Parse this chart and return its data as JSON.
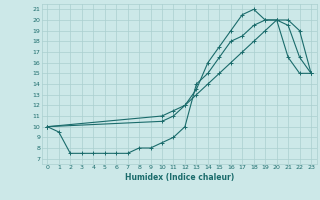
{
  "xlabel": "Humidex (Indice chaleur)",
  "bg_color": "#cce8e8",
  "grid_color": "#aacfcf",
  "line_color": "#1a6b6b",
  "xlim": [
    -0.5,
    23.5
  ],
  "ylim": [
    6.5,
    21.5
  ],
  "xticks": [
    0,
    1,
    2,
    3,
    4,
    5,
    6,
    7,
    8,
    9,
    10,
    11,
    12,
    13,
    14,
    15,
    16,
    17,
    18,
    19,
    20,
    21,
    22,
    23
  ],
  "yticks": [
    7,
    8,
    9,
    10,
    11,
    12,
    13,
    14,
    15,
    16,
    17,
    18,
    19,
    20,
    21
  ],
  "line1_x": [
    0,
    1,
    2,
    3,
    4,
    5,
    6,
    7,
    8,
    9,
    10,
    11,
    12,
    13,
    14,
    15,
    16,
    17,
    18,
    19,
    20,
    21,
    22,
    23
  ],
  "line1_y": [
    10,
    9.5,
    7.5,
    7.5,
    7.5,
    7.5,
    7.5,
    7.5,
    8.0,
    8.0,
    8.5,
    9.0,
    10.0,
    14.0,
    15.0,
    16.5,
    18.0,
    18.5,
    19.5,
    20.0,
    20.0,
    19.5,
    16.5,
    15.0
  ],
  "line2_x": [
    0,
    10,
    11,
    12,
    13,
    14,
    15,
    16,
    17,
    18,
    19,
    20,
    21,
    22,
    23
  ],
  "line2_y": [
    10,
    11.0,
    11.5,
    12.0,
    13.5,
    16.0,
    17.5,
    19.0,
    20.5,
    21.0,
    20.0,
    20.0,
    16.5,
    15.0,
    15.0
  ],
  "line3_x": [
    0,
    10,
    11,
    12,
    13,
    14,
    15,
    16,
    17,
    18,
    19,
    20,
    21,
    22,
    23
  ],
  "line3_y": [
    10,
    10.5,
    11.0,
    12.0,
    13.0,
    14.0,
    15.0,
    16.0,
    17.0,
    18.0,
    19.0,
    20.0,
    20.0,
    19.0,
    15.0
  ]
}
